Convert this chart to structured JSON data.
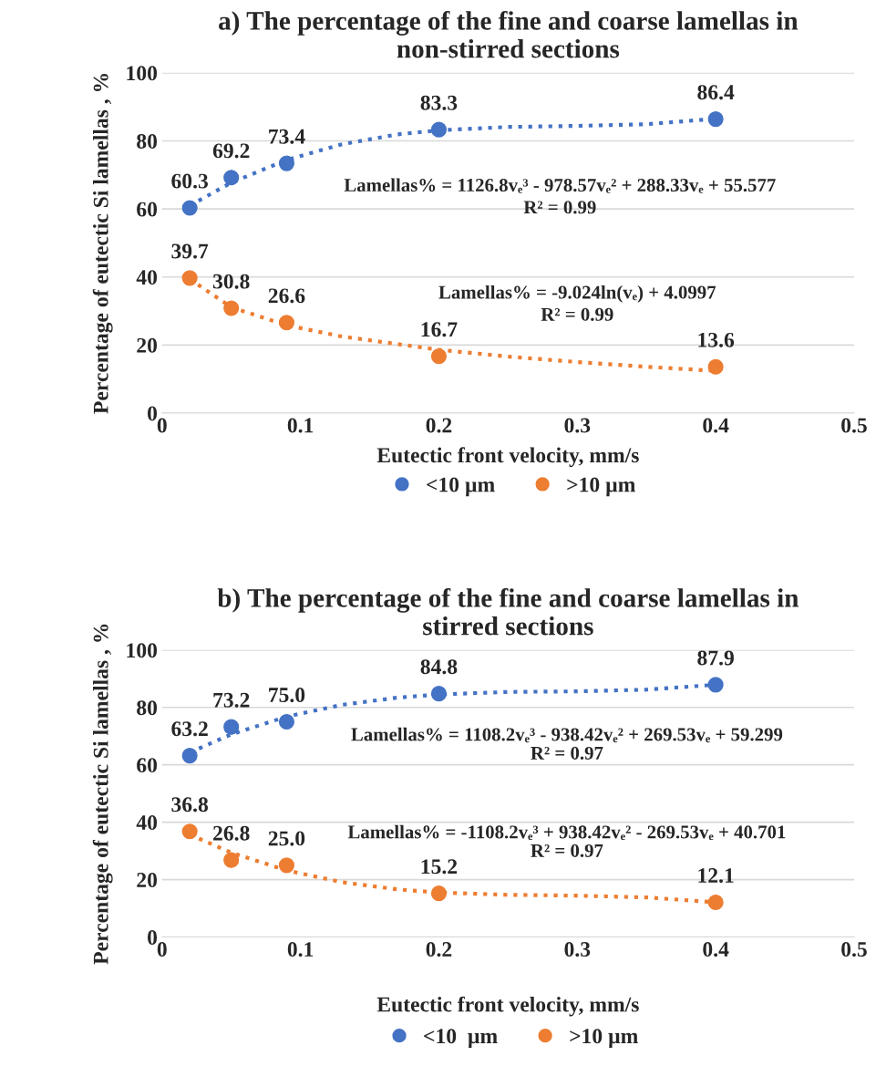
{
  "chart_data": [
    {
      "type": "scatter",
      "title": "a) The percentage of the fine and coarse lamellas in\nnon-stirred sections",
      "xlabel": "Eutectic front velocity, mm/s",
      "ylabel": "Percentage of eutectic Si lamellas , %",
      "x": [
        0.02,
        0.05,
        0.09,
        0.2,
        0.4
      ],
      "series": [
        {
          "name": "<10 µm",
          "color": "#4472c4",
          "marker": "circle",
          "values": [
            60.3,
            69.2,
            73.4,
            83.3,
            86.4
          ],
          "value_labels": [
            "60.3",
            "69.2",
            "73.4",
            "83.3",
            "86.4"
          ]
        },
        {
          "name": ">10 µm",
          "color": "#ed7d31",
          "marker": "circle",
          "values": [
            39.7,
            30.8,
            26.6,
            16.7,
            13.6
          ],
          "value_labels": [
            "39.7",
            "30.8",
            "26.6",
            "16.7",
            "13.6"
          ]
        },
        {
          "type": "line",
          "color": "#4472c4",
          "line_style": "dotted",
          "x": [
            0.02,
            0.05,
            0.09,
            0.13,
            0.17,
            0.2,
            0.25,
            0.3,
            0.35,
            0.4
          ],
          "values": [
            61,
            67.7,
            74.4,
            79,
            81.9,
            83.1,
            84.1,
            84.4,
            84.9,
            86.5
          ]
        },
        {
          "type": "line",
          "color": "#ed7d31",
          "line_style": "dotted",
          "x": [
            0.02,
            0.05,
            0.09,
            0.13,
            0.2,
            0.25,
            0.3,
            0.35,
            0.4
          ],
          "values": [
            39.4,
            31.1,
            25.8,
            22.5,
            18.6,
            16.6,
            15,
            13.6,
            12.4
          ]
        }
      ],
      "annotations": [
        "Lamellas% = 1126.8vₑ³ - 978.57vₑ² + 288.33vₑ + 55.577",
        "R² = 0.99",
        "Lamellas% = -9.024ln(vₑ) + 4.0997",
        "R² = 0.99"
      ],
      "xlim": [
        0,
        0.5
      ],
      "xticks": [
        0,
        0.1,
        0.2,
        0.3,
        0.4,
        0.5
      ],
      "ylim": [
        0,
        100
      ],
      "yticks": [
        0,
        20,
        40,
        60,
        80,
        100
      ],
      "grid": "y",
      "legend": "bottom"
    },
    {
      "type": "scatter",
      "title": "b) The percentage of the fine and coarse lamellas in\nstirred sections",
      "xlabel": "Eutectic front velocity, mm/s",
      "ylabel": "Percentage of eutectic Si lamellas , %",
      "x": [
        0.02,
        0.05,
        0.09,
        0.2,
        0.4
      ],
      "series": [
        {
          "name": "<10  µm",
          "color": "#4472c4",
          "marker": "circle",
          "values": [
            63.2,
            73.2,
            75.0,
            84.8,
            87.9
          ],
          "value_labels": [
            "63.2",
            "73.2",
            "75.0",
            "84.8",
            "87.9"
          ]
        },
        {
          "name": ">10 µm",
          "color": "#ed7d31",
          "marker": "circle",
          "values": [
            36.8,
            26.8,
            25.0,
            15.2,
            12.1
          ],
          "value_labels": [
            "36.8",
            "26.8",
            "25.0",
            "15.2",
            "12.1"
          ]
        },
        {
          "type": "line",
          "color": "#4472c4",
          "line_style": "dotted",
          "x": [
            0.02,
            0.05,
            0.09,
            0.13,
            0.17,
            0.2,
            0.25,
            0.3,
            0.35,
            0.4
          ],
          "values": [
            64.3,
            70.6,
            76.8,
            80.9,
            83.4,
            84.5,
            85.4,
            85.6,
            86.2,
            87.9
          ]
        },
        {
          "type": "line",
          "color": "#ed7d31",
          "line_style": "dotted",
          "x": [
            0.02,
            0.05,
            0.09,
            0.13,
            0.17,
            0.2,
            0.25,
            0.3,
            0.35,
            0.4
          ],
          "values": [
            35.7,
            29.4,
            23.2,
            19.1,
            16.6,
            15.5,
            14.7,
            14.4,
            13.8,
            12.1
          ]
        }
      ],
      "annotations": [
        "Lamellas% = 1108.2vₑ³ - 938.42vₑ² + 269.53vₑ + 59.299",
        "R² = 0.97",
        "Lamellas% = -1108.2vₑ³ + 938.42vₑ² - 269.53vₑ + 40.701",
        "R² = 0.97"
      ],
      "xlim": [
        0,
        0.5
      ],
      "xticks": [
        0,
        0.1,
        0.2,
        0.3,
        0.4,
        0.5
      ],
      "ylim": [
        0,
        100
      ],
      "yticks": [
        0,
        20,
        40,
        60,
        80,
        100
      ],
      "grid": "y",
      "legend": "bottom"
    }
  ]
}
